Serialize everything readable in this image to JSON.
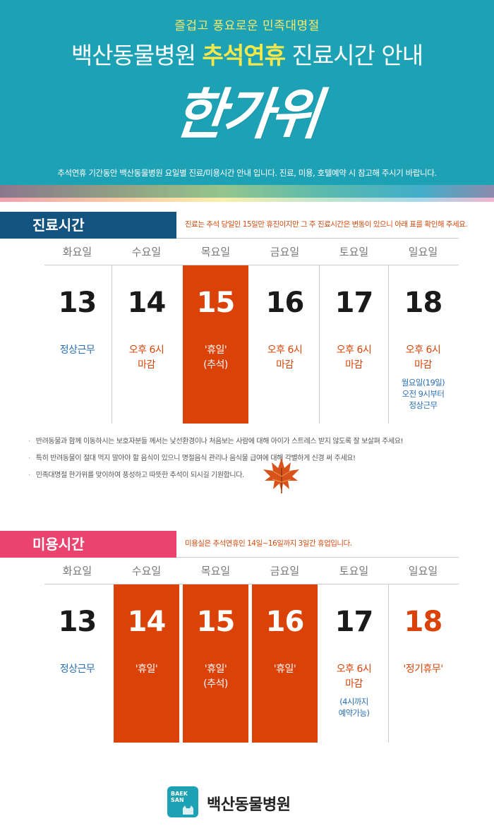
{
  "header": {
    "subtitle": "즐겁고 풍요로운 민족대명절",
    "title_pre": "백산동물병원 ",
    "title_highlight": "추석연휴",
    "title_post": " 진료시간 안내",
    "calligraphy": "한가위",
    "notice": "추석연휴 기간동안 백산동물병원 요일별 진료/미용시간 안내 입니다. 진료, 미용, 호텔예약 시 참고해 주시기 바랍니다."
  },
  "colors": {
    "header_bg": "#1da1b5",
    "accent_yellow": "#f6e84b",
    "closed_orange": "#db4208",
    "text_blue": "#2a6fb5",
    "tab_blue": "#13537f",
    "tab_pink": "#ea436f"
  },
  "clinic": {
    "tab_label": "진료시간",
    "note": "진료는 추석 당일인 15일만 휴진이지만 그 주 진료시간은 변동이 있으니 아래 표를 확인해 주세요.",
    "days": [
      {
        "weekday": "화요일",
        "date": "13",
        "status": [
          "정상근무"
        ],
        "style": "blue",
        "closed": false,
        "extra": []
      },
      {
        "weekday": "수요일",
        "date": "14",
        "status": [
          "오후 6시",
          "마감"
        ],
        "style": "orange",
        "closed": false,
        "extra": []
      },
      {
        "weekday": "목요일",
        "date": "15",
        "status": [
          "'휴일'",
          "(추석)"
        ],
        "style": "white",
        "closed": true,
        "extra": []
      },
      {
        "weekday": "금요일",
        "date": "16",
        "status": [
          "오후 6시",
          "마감"
        ],
        "style": "orange",
        "closed": false,
        "extra": []
      },
      {
        "weekday": "토요일",
        "date": "17",
        "status": [
          "오후 6시",
          "마감"
        ],
        "style": "orange",
        "closed": false,
        "extra": []
      },
      {
        "weekday": "일요일",
        "date": "18",
        "status": [
          "오후 6시",
          "마감"
        ],
        "style": "orange",
        "closed": false,
        "extra": [
          "월요일(19일)",
          "오전 9시부터",
          "정상근무"
        ]
      }
    ]
  },
  "notes": [
    "반려동물과 함께 이동하시는 보호자분들 께서는 낯선환경이나 처음보는 사람에 대해 아이가 스트레스 받지 않도록 잘 보살펴 주세요!",
    "특히 반려동물이 절대 먹지 말아야 할 음식이 있으니 명절음식 관리나 음식물 급여에 대해 각별하게 신경 써 주세요!",
    "민족대명절 한가위를 맞이하여 풍성하고 따뜻한 추석이 되시길 기원합니다."
  ],
  "grooming": {
    "tab_label": "미용시간",
    "note": "미용실은 추석연휴인 14일~16일까지 3일간 휴업입니다.",
    "days": [
      {
        "weekday": "화요일",
        "date": "13",
        "status": [
          "정상근무"
        ],
        "style": "blue",
        "closed": false,
        "extra": []
      },
      {
        "weekday": "수요일",
        "date": "14",
        "status": [
          "'휴일'"
        ],
        "style": "white",
        "closed": true,
        "extra": []
      },
      {
        "weekday": "목요일",
        "date": "15",
        "status": [
          "'휴일'",
          "(추석)"
        ],
        "style": "white",
        "closed": true,
        "extra": []
      },
      {
        "weekday": "금요일",
        "date": "16",
        "status": [
          "'휴일'"
        ],
        "style": "white",
        "closed": true,
        "extra": []
      },
      {
        "weekday": "토요일",
        "date": "17",
        "status": [
          "오후 6시",
          "마감"
        ],
        "style": "orange",
        "closed": false,
        "extra": [
          "(4시까지",
          "예약가능)"
        ]
      },
      {
        "weekday": "일요일",
        "date": "18",
        "status": [
          "'정기휴무'"
        ],
        "style": "orange",
        "closed": false,
        "date_color": "orange",
        "extra": []
      }
    ]
  },
  "footer": {
    "logo_badge_line1": "BAEK",
    "logo_badge_line2": "SAN",
    "logo_text": "백산동물병원"
  }
}
